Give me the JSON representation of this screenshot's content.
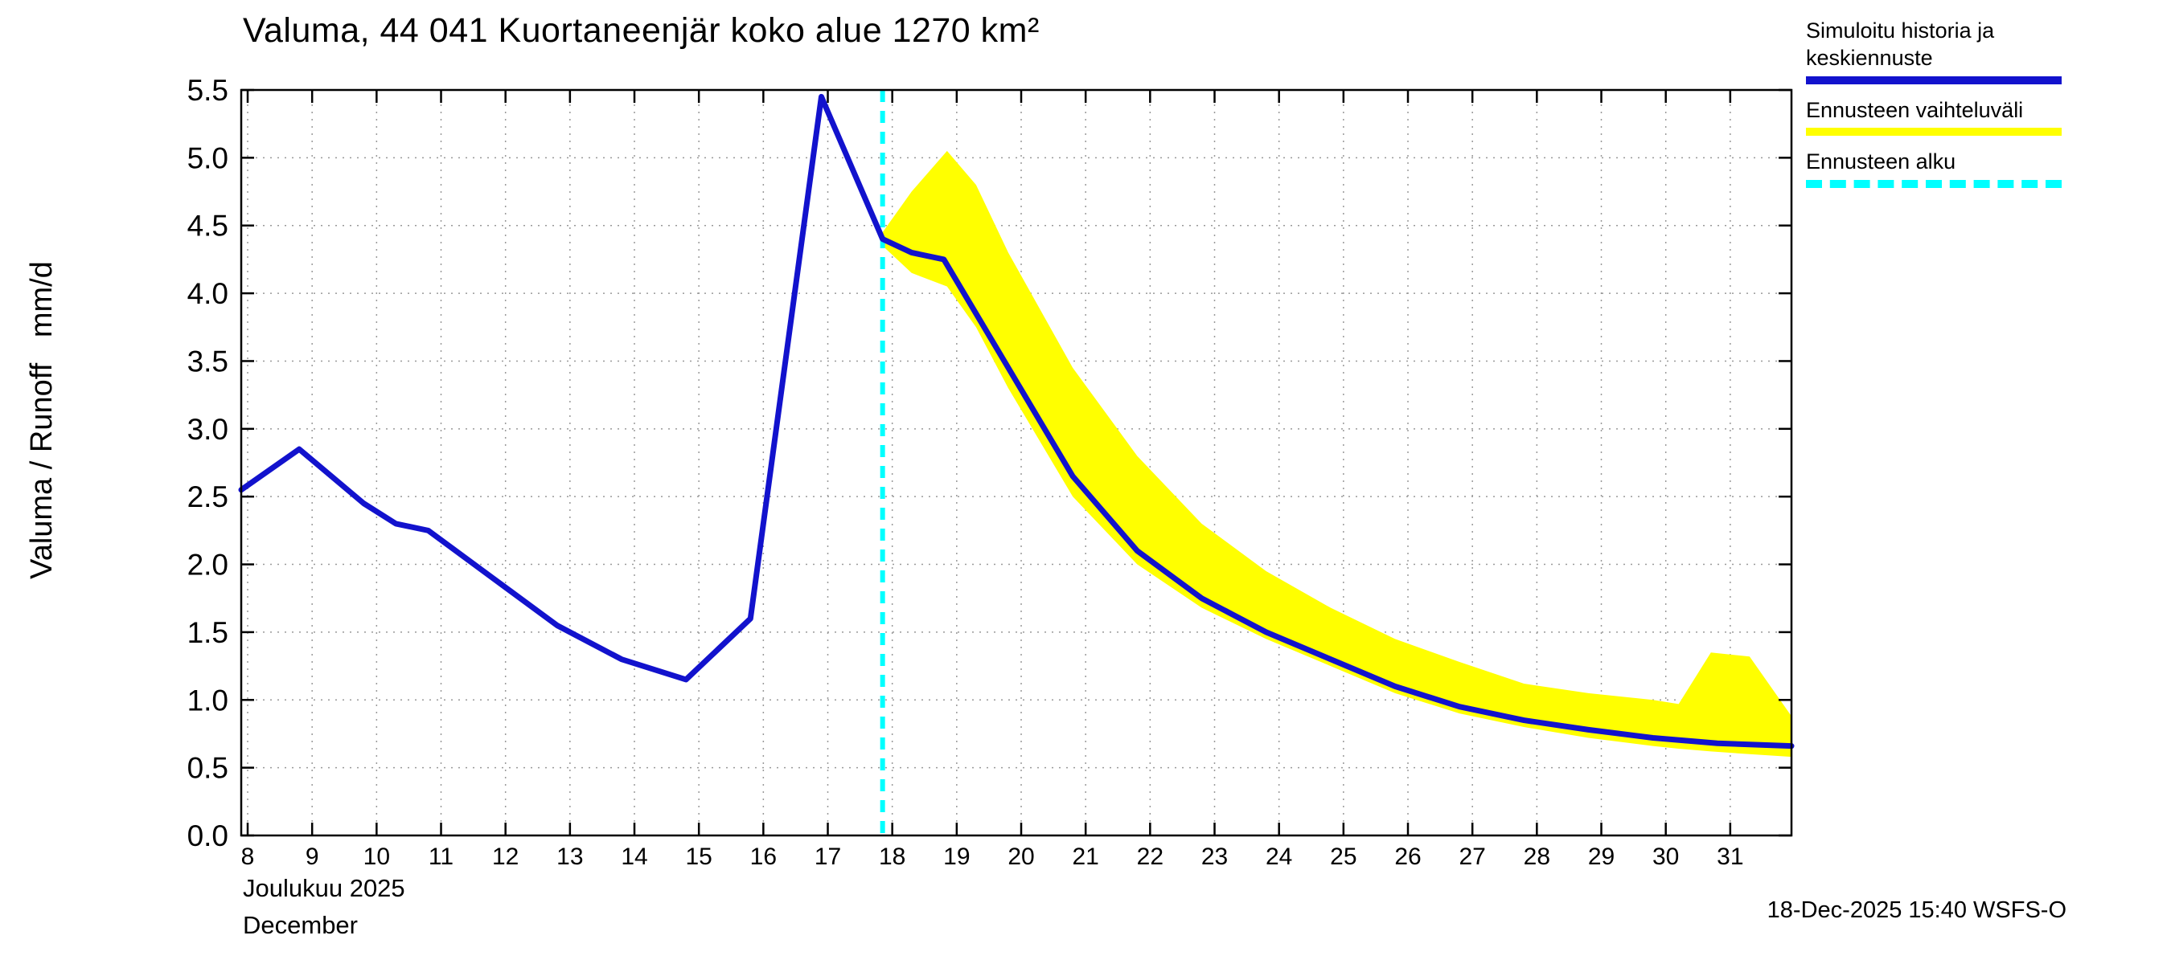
{
  "page": {
    "title": "Valuma, 44 041 Kuortaneenjär koko alue 1270 km²",
    "timestamp": "18-Dec-2025 15:40 WSFS-O",
    "month_label_fi": "Joulukuu 2025",
    "month_label_en": "December",
    "y_axis_label": "Valuma / Runoff   mm/d"
  },
  "legend": {
    "items": [
      {
        "label": "Simuloitu historia ja keskiennuste",
        "color": "#1212cd",
        "style": "solid"
      },
      {
        "label": "Ennusteen vaihteluväli",
        "color": "#ffff00",
        "style": "solid"
      },
      {
        "label": "Ennusteen alku",
        "color": "#00ffff",
        "style": "dashed"
      }
    ]
  },
  "chart_data": {
    "type": "line",
    "title": "Valuma, 44 041 Kuortaneenjär koko alue 1270 km²",
    "xlabel": "Joulukuu 2025 / December",
    "ylabel": "Valuma / Runoff mm/d",
    "xlim": [
      7.9,
      31.95
    ],
    "ylim": [
      0,
      5.5
    ],
    "x_ticks": [
      8,
      9,
      10,
      11,
      12,
      13,
      14,
      15,
      16,
      17,
      18,
      19,
      20,
      21,
      22,
      23,
      24,
      25,
      26,
      27,
      28,
      29,
      30,
      31
    ],
    "y_ticks": [
      0,
      0.5,
      1,
      1.5,
      2,
      2.5,
      3,
      3.5,
      4,
      4.5,
      5,
      5.5
    ],
    "grid": true,
    "legend_position": "top-right",
    "forecast_start_x": 17.85,
    "forecast_start_color": "#00ffff",
    "series": [
      {
        "name": "Simuloitu historia ja keskiennuste",
        "color": "#1212cd",
        "x": [
          7.9,
          8.8,
          9.8,
          10.3,
          10.8,
          11.8,
          12.8,
          13.8,
          14.8,
          15.8,
          16.9,
          17.85,
          18.3,
          18.8,
          19.8,
          20.8,
          21.8,
          22.8,
          23.8,
          24.8,
          25.8,
          26.8,
          27.8,
          28.8,
          29.8,
          30.8,
          31.95
        ],
        "y": [
          2.55,
          2.85,
          2.45,
          2.3,
          2.25,
          1.9,
          1.55,
          1.3,
          1.15,
          1.6,
          5.45,
          4.4,
          4.3,
          4.25,
          3.45,
          2.65,
          2.1,
          1.75,
          1.5,
          1.3,
          1.1,
          0.95,
          0.85,
          0.78,
          0.72,
          0.68,
          0.66
        ]
      }
    ],
    "band": {
      "name": "Ennusteen vaihteluväli",
      "color": "#ffff00",
      "x": [
        17.85,
        18.3,
        18.85,
        19.3,
        19.8,
        20.8,
        21.8,
        22.8,
        23.8,
        24.8,
        25.8,
        26.8,
        27.8,
        28.8,
        29.8,
        30.2,
        30.7,
        31.3,
        31.95
      ],
      "upper": [
        4.45,
        4.75,
        5.05,
        4.8,
        4.3,
        3.45,
        2.8,
        2.3,
        1.95,
        1.68,
        1.45,
        1.28,
        1.12,
        1.05,
        1.0,
        0.97,
        1.35,
        1.32,
        0.88
      ],
      "lower": [
        4.35,
        4.15,
        4.05,
        3.75,
        3.3,
        2.5,
        2.0,
        1.68,
        1.45,
        1.25,
        1.05,
        0.9,
        0.8,
        0.72,
        0.66,
        0.64,
        0.62,
        0.6,
        0.58
      ]
    }
  }
}
